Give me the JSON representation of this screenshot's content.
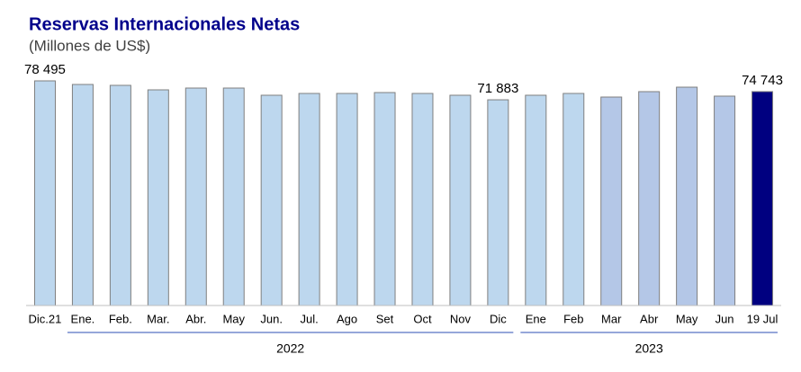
{
  "chart_data": {
    "type": "bar",
    "title": "Reservas Internacionales Netas",
    "subtitle": "(Millones de US$)",
    "categories": [
      "Dic.21",
      "Ene.",
      "Feb.",
      "Mar.",
      "Abr.",
      "May",
      "Jun.",
      "Jul.",
      "Ago",
      "Set",
      "Oct",
      "Nov",
      "Dic",
      "Ene",
      "Feb",
      "Mar",
      "Abr",
      "May",
      "Jun",
      "19 Jul"
    ],
    "values": [
      78495,
      77240,
      76930,
      75355,
      75980,
      75980,
      73470,
      74100,
      74100,
      74410,
      74100,
      73470,
      71883,
      73470,
      74100,
      72840,
      74730,
      76290,
      73160,
      74743
    ],
    "value_labels": [
      "78 495",
      null,
      null,
      null,
      null,
      null,
      null,
      null,
      null,
      null,
      null,
      null,
      "71 883",
      null,
      null,
      null,
      null,
      null,
      null,
      "74 743"
    ],
    "colors": [
      "#bdd7ee",
      "#bdd7ee",
      "#bdd7ee",
      "#bdd7ee",
      "#bdd7ee",
      "#bdd7ee",
      "#bdd7ee",
      "#bdd7ee",
      "#bdd7ee",
      "#bdd7ee",
      "#bdd7ee",
      "#bdd7ee",
      "#bdd7ee",
      "#bdd7ee",
      "#bdd7ee",
      "#b4c7e7",
      "#b4c7e7",
      "#b4c7e7",
      "#b4c7e7",
      "#000080"
    ],
    "groups": [
      "2022",
      "2023"
    ],
    "ylim": [
      0,
      80000
    ]
  }
}
